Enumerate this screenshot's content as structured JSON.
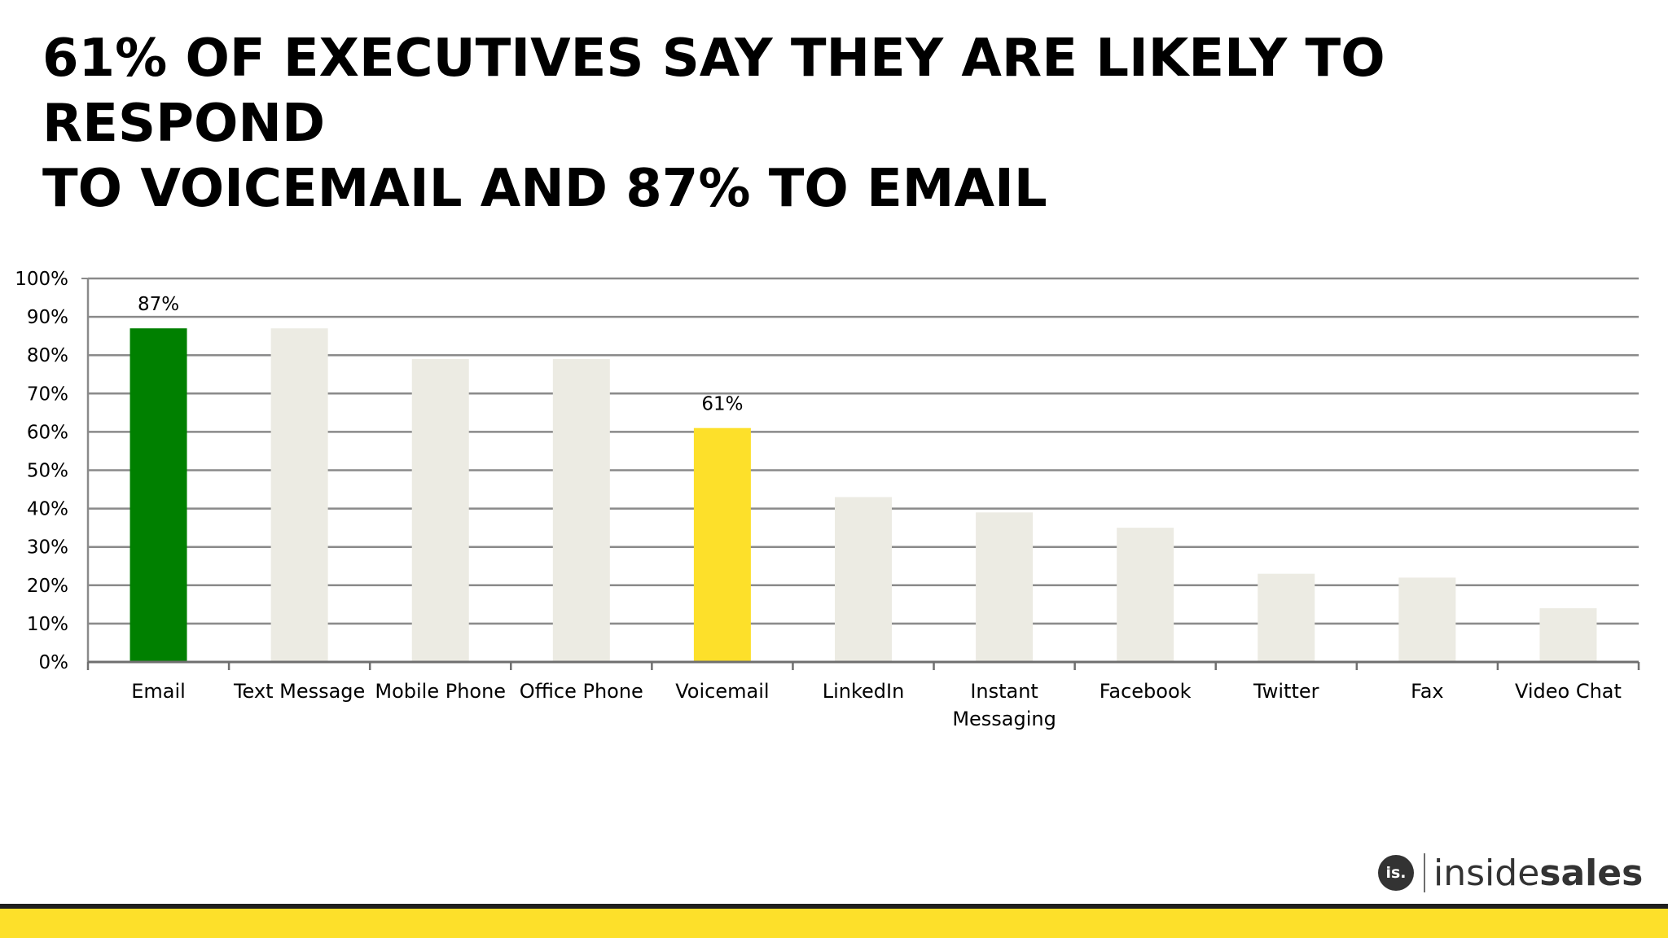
{
  "slide": {
    "title_line1": "61% OF EXECUTIVES SAY THEY ARE LIKELY TO RESPOND",
    "title_line2": "TO VOICEMAIL AND 87% TO EMAIL"
  },
  "logo": {
    "mark": "is.",
    "name_light": "inside",
    "name_bold": "sales"
  },
  "colors": {
    "email_bar": "#008000",
    "voicemail_bar": "#fde02a",
    "other_bars": "#ecebe3",
    "footer_band": "#fde02a",
    "gridline": "#8a8a8a"
  },
  "chart_data": {
    "type": "bar",
    "title": "",
    "xlabel": "",
    "ylabel": "",
    "ylim": [
      0,
      100
    ],
    "yticks": [
      "0%",
      "10%",
      "20%",
      "30%",
      "40%",
      "50%",
      "60%",
      "70%",
      "80%",
      "90%",
      "100%"
    ],
    "grid": true,
    "categories": [
      [
        "Email"
      ],
      [
        "Text Message"
      ],
      [
        "Mobile Phone"
      ],
      [
        "Office Phone"
      ],
      [
        "Voicemail"
      ],
      [
        "LinkedIn"
      ],
      [
        "Instant",
        "Messaging"
      ],
      [
        "Facebook"
      ],
      [
        "Twitter"
      ],
      [
        "Fax"
      ],
      [
        "Video Chat"
      ]
    ],
    "values": [
      87,
      87,
      79,
      79,
      61,
      43,
      39,
      35,
      23,
      22,
      14
    ],
    "data_labels": [
      "87%",
      "",
      "",
      "",
      "61%",
      "",
      "",
      "",
      "",
      "",
      ""
    ],
    "bar_colors": [
      "#008000",
      "#ecebe3",
      "#ecebe3",
      "#ecebe3",
      "#fde02a",
      "#ecebe3",
      "#ecebe3",
      "#ecebe3",
      "#ecebe3",
      "#ecebe3",
      "#ecebe3"
    ]
  }
}
